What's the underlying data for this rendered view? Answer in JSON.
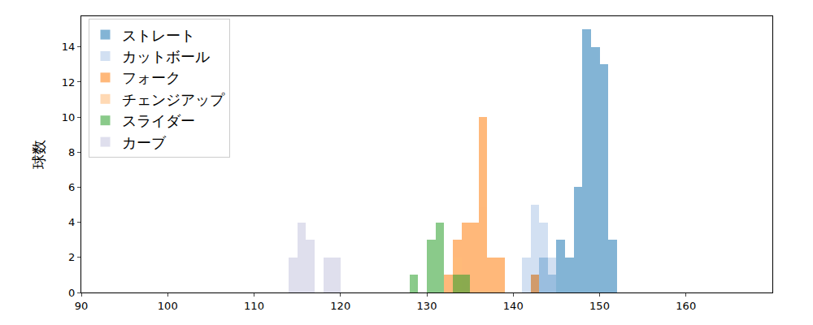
{
  "chart_data": {
    "type": "histogram",
    "y_label": "球数",
    "bins": [
      113,
      114,
      115,
      116,
      117,
      118,
      119,
      120,
      121,
      122,
      123,
      124,
      125,
      126,
      127,
      128,
      129,
      130,
      131,
      132,
      133,
      134,
      135,
      136,
      137,
      138,
      139,
      140,
      141,
      142,
      143,
      144,
      145,
      146,
      147,
      148,
      149,
      150,
      151,
      152
    ],
    "series": [
      {
        "name": "ストレート",
        "color": "#1f77b4",
        "values": [
          0,
          0,
          0,
          0,
          0,
          0,
          0,
          0,
          0,
          0,
          0,
          0,
          0,
          0,
          0,
          0,
          0,
          0,
          0,
          0,
          0,
          0,
          0,
          0,
          0,
          0,
          0,
          0,
          0,
          1,
          2,
          1,
          3,
          2,
          6,
          15,
          14,
          13,
          3
        ]
      },
      {
        "name": "カットボール",
        "color": "#aec7e8",
        "values": [
          0,
          0,
          0,
          0,
          0,
          0,
          0,
          0,
          0,
          0,
          0,
          0,
          0,
          0,
          0,
          0,
          0,
          0,
          0,
          0,
          0,
          0,
          0,
          0,
          0,
          0,
          0,
          0,
          2,
          5,
          4,
          2,
          0,
          0,
          0,
          0,
          0,
          0,
          0
        ]
      },
      {
        "name": "フォーク",
        "color": "#ff7f0e",
        "values": [
          0,
          0,
          0,
          0,
          0,
          0,
          0,
          0,
          0,
          0,
          0,
          0,
          0,
          0,
          0,
          0,
          0,
          0,
          0,
          1,
          3,
          4,
          4,
          10,
          2,
          2,
          0,
          0,
          0,
          1,
          0,
          0,
          0,
          0,
          0,
          0,
          0,
          0,
          0
        ]
      },
      {
        "name": "チェンジアップ",
        "color": "#ffbb78",
        "values": [
          0,
          0,
          0,
          0,
          0,
          0,
          0,
          0,
          0,
          0,
          0,
          0,
          0,
          0,
          0,
          0,
          0,
          0,
          0,
          0,
          2,
          0,
          0,
          0,
          0,
          0,
          0,
          0,
          0,
          0,
          0,
          0,
          0,
          0,
          0,
          0,
          0,
          0,
          0
        ]
      },
      {
        "name": "スライダー",
        "color": "#2ca02c",
        "values": [
          0,
          0,
          0,
          0,
          0,
          0,
          0,
          0,
          0,
          0,
          0,
          0,
          0,
          0,
          0,
          1,
          0,
          3,
          4,
          0,
          1,
          1,
          0,
          0,
          0,
          0,
          0,
          0,
          0,
          0,
          0,
          0,
          0,
          0,
          0,
          0,
          0,
          0,
          0
        ]
      },
      {
        "name": "カーブ",
        "color": "#c6c6e0",
        "values": [
          0,
          2,
          4,
          3,
          0,
          2,
          2,
          0,
          0,
          0,
          0,
          0,
          0,
          0,
          0,
          0,
          0,
          0,
          0,
          0,
          0,
          0,
          0,
          0,
          0,
          0,
          0,
          0,
          0,
          0,
          0,
          0,
          0,
          0,
          0,
          0,
          0,
          0,
          0
        ]
      }
    ],
    "xlim": [
      90,
      170
    ],
    "xticks": [
      90,
      100,
      110,
      120,
      130,
      140,
      150,
      160
    ],
    "ylim": [
      0,
      15.75
    ],
    "yticks": [
      0,
      2,
      4,
      6,
      8,
      10,
      12,
      14
    ],
    "legend": "upper left",
    "grid": false
  }
}
